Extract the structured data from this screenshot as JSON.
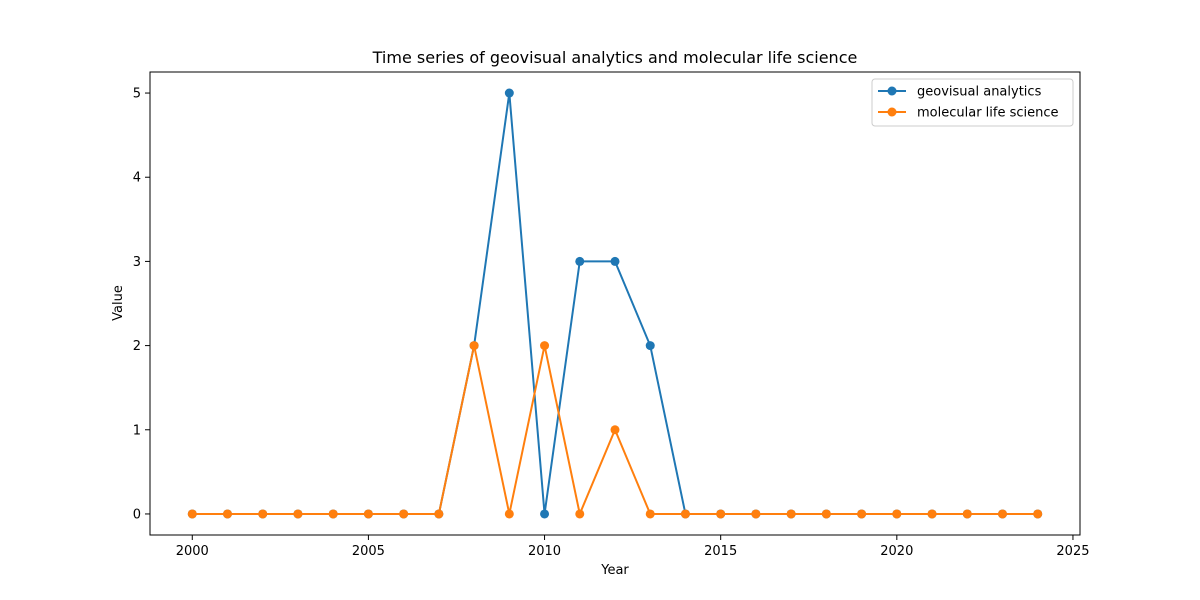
{
  "chart_data": {
    "type": "line",
    "title": "Time series of geovisual analytics and molecular life science",
    "xlabel": "Year",
    "ylabel": "Value",
    "x": [
      2000,
      2001,
      2002,
      2003,
      2004,
      2005,
      2006,
      2007,
      2008,
      2009,
      2010,
      2011,
      2012,
      2013,
      2014,
      2015,
      2016,
      2017,
      2018,
      2019,
      2020,
      2021,
      2022,
      2023,
      2024
    ],
    "xlim": [
      1998.8,
      2025.2
    ],
    "ylim": [
      -0.25,
      5.25
    ],
    "xticks": [
      2000,
      2005,
      2010,
      2015,
      2020,
      2025
    ],
    "yticks": [
      0,
      1,
      2,
      3,
      4,
      5
    ],
    "grid": false,
    "legend_position": "upper right",
    "series": [
      {
        "name": "geovisual analytics",
        "color": "#1f77b4",
        "marker": "circle",
        "values": [
          0,
          0,
          0,
          0,
          0,
          0,
          0,
          0,
          2,
          5,
          0,
          3,
          3,
          2,
          0,
          0,
          0,
          0,
          0,
          0,
          0,
          0,
          0,
          0,
          0
        ]
      },
      {
        "name": "molecular life science",
        "color": "#ff7f0e",
        "marker": "circle",
        "values": [
          0,
          0,
          0,
          0,
          0,
          0,
          0,
          0,
          2,
          0,
          2,
          0,
          1,
          0,
          0,
          0,
          0,
          0,
          0,
          0,
          0,
          0,
          0,
          0,
          0
        ]
      }
    ]
  }
}
